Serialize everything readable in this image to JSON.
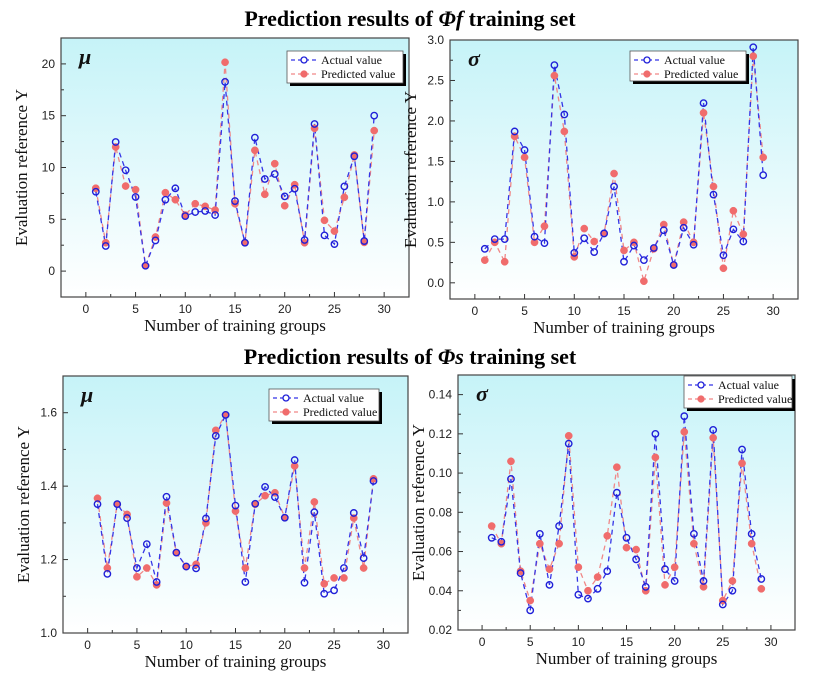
{
  "figure": {
    "row_titles": [
      {
        "prefix": "Prediction results of ",
        "symbol": "Φf",
        "suffix": " training set"
      },
      {
        "prefix": "Prediction results of ",
        "symbol": "Φs",
        "suffix": " training set"
      }
    ]
  },
  "colors": {
    "actual": "#1f1fd8",
    "predicted": "#f06c6c",
    "actual_line": "#3535e6",
    "predicted_line": "#f08888",
    "bg_top": "#c6f3f8",
    "bg_bottom": "#ffffff"
  },
  "chart_data": [
    {
      "type": "line",
      "title": "Prediction results of Φf training set",
      "panel_label": "μ",
      "xlabel": "Number of training groups",
      "ylabel": "Evaluation reference Y",
      "xlim": [
        -2.5,
        32.5
      ],
      "ylim": [
        -2.5,
        22.5
      ],
      "xticks": [
        0,
        5,
        10,
        15,
        20,
        25,
        30
      ],
      "yticks": [
        0,
        5,
        10,
        15,
        20
      ],
      "ytick_labels": [
        "0",
        "5",
        "10",
        "15",
        "20"
      ],
      "grid": false,
      "legend": {
        "position": "top-right",
        "entries": [
          "Actual value",
          "Predicted value"
        ]
      },
      "x": [
        1,
        2,
        3,
        4,
        5,
        6,
        7,
        8,
        9,
        10,
        11,
        12,
        13,
        14,
        15,
        16,
        17,
        18,
        19,
        20,
        21,
        22,
        23,
        24,
        25,
        26,
        27,
        28,
        29
      ],
      "series": [
        {
          "name": "Actual value",
          "values": [
            7.66,
            2.42,
            12.46,
            9.73,
            7.15,
            0.52,
            2.96,
            6.89,
            7.99,
            5.31,
            5.7,
            5.8,
            5.41,
            18.26,
            6.76,
            2.74,
            12.88,
            8.89,
            9.37,
            7.21,
            7.95,
            3.0,
            14.2,
            3.45,
            2.61,
            8.18,
            11.08,
            2.9,
            15.01
          ]
        },
        {
          "name": "Predicted value",
          "values": [
            8.0,
            2.74,
            11.98,
            8.21,
            7.86,
            0.52,
            3.29,
            7.57,
            6.89,
            5.41,
            6.5,
            6.25,
            5.89,
            20.16,
            6.5,
            2.74,
            11.66,
            7.41,
            10.37,
            6.31,
            8.34,
            2.74,
            13.78,
            4.9,
            3.86,
            7.12,
            11.21,
            2.77,
            13.56
          ]
        }
      ]
    },
    {
      "type": "line",
      "title": "Prediction results of Φf training set",
      "panel_label": "σ",
      "xlabel": "Number of training groups",
      "ylabel": "Evaluation reference Y",
      "xlim": [
        -2.5,
        32.5
      ],
      "ylim": [
        -0.2,
        3.0
      ],
      "xticks": [
        0,
        5,
        10,
        15,
        20,
        25,
        30
      ],
      "yticks": [
        0,
        0.5,
        1.0,
        1.5,
        2.0,
        2.5,
        3.0
      ],
      "ytick_labels": [
        "0.0",
        "0.5",
        "1.0",
        "1.5",
        "2.0",
        "2.5",
        "3.0"
      ],
      "grid": false,
      "legend": {
        "position": "top-right",
        "entries": [
          "Actual value",
          "Predicted value"
        ]
      },
      "x": [
        1,
        2,
        3,
        4,
        5,
        6,
        7,
        8,
        9,
        10,
        11,
        12,
        13,
        14,
        15,
        16,
        17,
        18,
        19,
        20,
        21,
        22,
        23,
        24,
        25,
        26,
        27,
        28,
        29
      ],
      "series": [
        {
          "name": "Actual value",
          "values": [
            0.42,
            0.54,
            0.54,
            1.87,
            1.64,
            0.57,
            0.49,
            2.69,
            2.08,
            0.37,
            0.55,
            0.38,
            0.61,
            1.19,
            0.26,
            0.46,
            0.28,
            0.43,
            0.65,
            0.22,
            0.68,
            0.47,
            2.22,
            1.09,
            0.34,
            0.66,
            0.51,
            2.91,
            1.33
          ]
        },
        {
          "name": "Predicted value",
          "values": [
            0.28,
            0.5,
            0.26,
            1.81,
            1.55,
            0.5,
            0.7,
            2.56,
            1.87,
            0.32,
            0.67,
            0.51,
            0.61,
            1.35,
            0.4,
            0.5,
            0.02,
            0.42,
            0.72,
            0.22,
            0.75,
            0.5,
            2.1,
            1.19,
            0.18,
            0.89,
            0.6,
            2.8,
            1.55
          ]
        }
      ]
    },
    {
      "type": "line",
      "title": "Prediction results of Φs training set",
      "panel_label": "μ",
      "xlabel": "Number of training groups",
      "ylabel": "Evaluation reference Y",
      "xlim": [
        -2.5,
        32.5
      ],
      "ylim": [
        1.0,
        1.7
      ],
      "xticks": [
        0,
        5,
        10,
        15,
        20,
        25,
        30
      ],
      "yticks": [
        1.0,
        1.2,
        1.4,
        1.6
      ],
      "ytick_labels": [
        "1.0",
        "1.2",
        "1.4",
        "1.6"
      ],
      "grid": false,
      "legend": {
        "position": "top-right",
        "entries": [
          "Actual value",
          "Predicted value"
        ]
      },
      "x": [
        1,
        2,
        3,
        4,
        5,
        6,
        7,
        8,
        9,
        10,
        11,
        12,
        13,
        14,
        15,
        16,
        17,
        18,
        19,
        20,
        21,
        22,
        23,
        24,
        25,
        26,
        27,
        28,
        29
      ],
      "series": [
        {
          "name": "Actual value",
          "values": [
            1.351,
            1.161,
            1.351,
            1.313,
            1.177,
            1.242,
            1.139,
            1.371,
            1.219,
            1.181,
            1.176,
            1.312,
            1.537,
            1.594,
            1.347,
            1.139,
            1.352,
            1.398,
            1.37,
            1.314,
            1.471,
            1.137,
            1.329,
            1.107,
            1.116,
            1.177,
            1.327,
            1.204,
            1.414
          ]
        },
        {
          "name": "Predicted value",
          "values": [
            1.367,
            1.177,
            1.351,
            1.323,
            1.153,
            1.177,
            1.131,
            1.354,
            1.219,
            1.181,
            1.187,
            1.3,
            1.552,
            1.594,
            1.332,
            1.177,
            1.351,
            1.374,
            1.382,
            1.314,
            1.455,
            1.177,
            1.357,
            1.134,
            1.15,
            1.15,
            1.313,
            1.177,
            1.42
          ]
        }
      ]
    },
    {
      "type": "line",
      "title": "Prediction results of Φs training set",
      "panel_label": "σ",
      "xlabel": "Number of training groups",
      "ylabel": "Evaluation reference Y",
      "xlim": [
        -2.5,
        32.5
      ],
      "ylim": [
        0.02,
        0.15
      ],
      "xticks": [
        0,
        5,
        10,
        15,
        20,
        25,
        30
      ],
      "yticks": [
        0.02,
        0.04,
        0.06,
        0.08,
        0.1,
        0.12,
        0.14
      ],
      "ytick_labels": [
        "0.02",
        "0.04",
        "0.06",
        "0.08",
        "0.10",
        "0.12",
        "0.14"
      ],
      "grid": false,
      "legend": {
        "position": "top-right",
        "entries": [
          "Actual value",
          "Predicted value"
        ]
      },
      "x": [
        1,
        2,
        3,
        4,
        5,
        6,
        7,
        8,
        9,
        10,
        11,
        12,
        13,
        14,
        15,
        16,
        17,
        18,
        19,
        20,
        21,
        22,
        23,
        24,
        25,
        26,
        27,
        28,
        29
      ],
      "series": [
        {
          "name": "Actual value",
          "values": [
            0.067,
            0.065,
            0.097,
            0.049,
            0.03,
            0.069,
            0.043,
            0.073,
            0.115,
            0.038,
            0.036,
            0.041,
            0.05,
            0.09,
            0.067,
            0.056,
            0.042,
            0.12,
            0.051,
            0.045,
            0.129,
            0.069,
            0.045,
            0.122,
            0.033,
            0.04,
            0.112,
            0.069,
            0.046
          ]
        },
        {
          "name": "Predicted value",
          "values": [
            0.073,
            0.064,
            0.106,
            0.05,
            0.035,
            0.064,
            0.051,
            0.064,
            0.119,
            0.052,
            0.04,
            0.047,
            0.068,
            0.103,
            0.062,
            0.061,
            0.04,
            0.108,
            0.043,
            0.052,
            0.121,
            0.064,
            0.042,
            0.118,
            0.035,
            0.045,
            0.105,
            0.064,
            0.041
          ]
        }
      ]
    }
  ]
}
